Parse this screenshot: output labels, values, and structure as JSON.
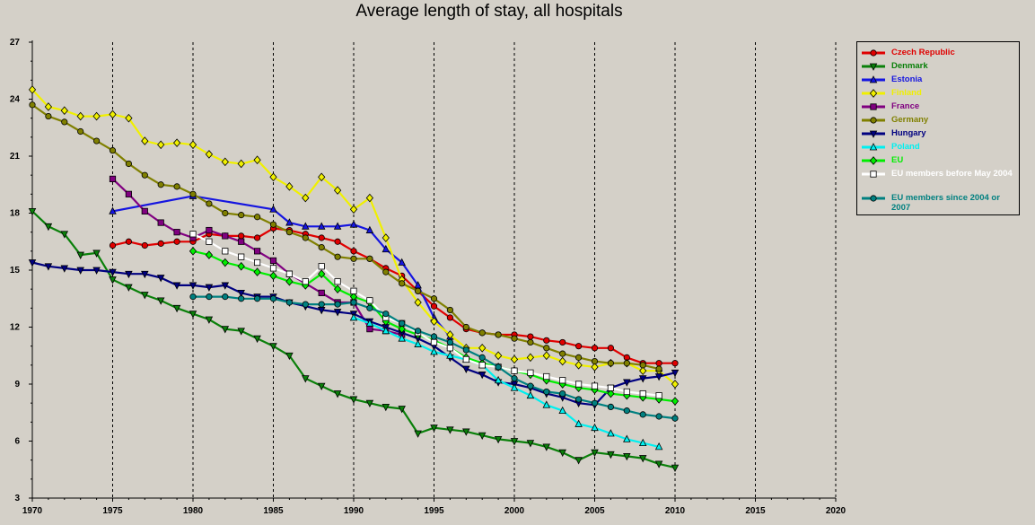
{
  "chart_data": {
    "type": "line",
    "title": "Average length of stay, all hospitals",
    "xlabel": "",
    "ylabel": "",
    "xlim": [
      1970,
      2020
    ],
    "ylim": [
      3,
      27
    ],
    "xticks": [
      1970,
      1975,
      1980,
      1985,
      1990,
      1995,
      2000,
      2005,
      2010,
      2015,
      2020
    ],
    "yticks": [
      3,
      6,
      9,
      12,
      15,
      18,
      21,
      24,
      27
    ],
    "grid": "vertical dashed",
    "legend_position": "right",
    "series": [
      {
        "name": "Czech Republic",
        "color": "#e00000",
        "marker": "circle",
        "x": [
          1975,
          1976,
          1977,
          1978,
          1979,
          1980,
          1981,
          1982,
          1983,
          1984,
          1985,
          1986,
          1987,
          1988,
          1989,
          1990,
          1991,
          1992,
          1993,
          1994,
          1995,
          1996,
          1997,
          1998,
          1999,
          2000,
          2001,
          2002,
          2003,
          2004,
          2005,
          2006,
          2007,
          2008,
          2009,
          2010
        ],
        "y": [
          16.3,
          16.5,
          16.3,
          16.4,
          16.5,
          16.5,
          16.9,
          16.8,
          16.8,
          16.7,
          17.2,
          17.1,
          16.9,
          16.7,
          16.5,
          16.0,
          15.6,
          15.1,
          14.7,
          13.9,
          13.1,
          12.5,
          11.9,
          11.7,
          11.6,
          11.6,
          11.5,
          11.3,
          11.2,
          11.0,
          10.9,
          10.9,
          10.4,
          10.1,
          10.1,
          10.1
        ]
      },
      {
        "name": "Denmark",
        "color": "#0a800a",
        "marker": "triangle-down",
        "x": [
          1970,
          1971,
          1972,
          1973,
          1974,
          1975,
          1976,
          1977,
          1978,
          1979,
          1980,
          1981,
          1982,
          1983,
          1984,
          1985,
          1986,
          1987,
          1988,
          1989,
          1990,
          1991,
          1992,
          1993,
          1994,
          1995,
          1996,
          1997,
          1998,
          1999,
          2000,
          2001,
          2002,
          2003,
          2004,
          2005,
          2006,
          2007,
          2008,
          2009,
          2010
        ],
        "y": [
          18.1,
          17.3,
          16.9,
          15.8,
          15.9,
          14.5,
          14.1,
          13.7,
          13.4,
          13.0,
          12.7,
          12.4,
          11.9,
          11.8,
          11.4,
          11.0,
          10.5,
          9.3,
          8.9,
          8.5,
          8.2,
          8.0,
          7.8,
          7.7,
          6.4,
          6.7,
          6.6,
          6.5,
          6.3,
          6.1,
          6.0,
          5.9,
          5.7,
          5.4,
          5.0,
          5.4,
          5.3,
          5.2,
          5.1,
          4.8,
          4.6
        ]
      },
      {
        "name": "Estonia",
        "color": "#1515e0",
        "marker": "triangle-up",
        "x": [
          1975,
          1980,
          1985,
          1986,
          1987,
          1988,
          1989,
          1990,
          1991,
          1992,
          1993,
          1994,
          1995,
          1996
        ],
        "y": [
          18.1,
          18.9,
          18.2,
          17.5,
          17.3,
          17.3,
          17.3,
          17.4,
          17.1,
          16.1,
          15.4,
          14.2,
          12.5,
          11.5
        ]
      },
      {
        "name": "Finland",
        "color": "#f0f000",
        "marker": "diamond",
        "x": [
          1970,
          1971,
          1972,
          1973,
          1974,
          1975,
          1976,
          1977,
          1978,
          1979,
          1980,
          1981,
          1982,
          1983,
          1984,
          1985,
          1986,
          1987,
          1988,
          1989,
          1990,
          1991,
          1992,
          1993,
          1994,
          1995,
          1996,
          1997,
          1998,
          1999,
          2000,
          2001,
          2002,
          2003,
          2004,
          2005,
          2006,
          2007,
          2008,
          2009,
          2010
        ],
        "y": [
          24.5,
          23.6,
          23.4,
          23.1,
          23.1,
          23.2,
          23.0,
          21.8,
          21.6,
          21.7,
          21.6,
          21.1,
          20.7,
          20.6,
          20.8,
          19.9,
          19.4,
          18.8,
          19.9,
          19.2,
          18.2,
          18.8,
          16.7,
          14.5,
          13.3,
          12.3,
          11.6,
          10.9,
          10.9,
          10.5,
          10.3,
          10.4,
          10.5,
          10.2,
          10.0,
          9.9,
          10.1,
          10.1,
          9.7,
          9.7,
          9.0
        ]
      },
      {
        "name": "France",
        "color": "#800080",
        "marker": "square",
        "x": [
          1975,
          1976,
          1977,
          1978,
          1979,
          1980,
          1981,
          1982,
          1983,
          1984,
          1985,
          1986,
          1987,
          1988,
          1989,
          1990,
          1991,
          1992,
          1993
        ],
        "y": [
          19.8,
          19.0,
          18.1,
          17.5,
          17.0,
          16.7,
          17.1,
          16.8,
          16.5,
          16.0,
          15.5,
          14.8,
          14.3,
          13.8,
          13.3,
          13.3,
          11.9,
          11.8,
          11.6
        ]
      },
      {
        "name": "Germany",
        "color": "#808000",
        "marker": "circle",
        "x": [
          1970,
          1971,
          1972,
          1973,
          1974,
          1975,
          1976,
          1977,
          1978,
          1979,
          1980,
          1981,
          1982,
          1983,
          1984,
          1985,
          1986,
          1987,
          1988,
          1989,
          1990,
          1991,
          1992,
          1993,
          1994,
          1995,
          1996,
          1997,
          1998,
          1999,
          2000,
          2001,
          2002,
          2003,
          2004,
          2005,
          2006,
          2007,
          2008,
          2009
        ],
        "y": [
          23.7,
          23.1,
          22.8,
          22.3,
          21.8,
          21.3,
          20.6,
          20.0,
          19.5,
          19.4,
          19.0,
          18.5,
          18.0,
          17.9,
          17.8,
          17.4,
          17.0,
          16.7,
          16.2,
          15.7,
          15.6,
          15.6,
          14.9,
          14.3,
          13.9,
          13.5,
          12.9,
          12.0,
          11.7,
          11.6,
          11.4,
          11.2,
          10.9,
          10.6,
          10.4,
          10.2,
          10.1,
          10.1,
          10.0,
          9.8
        ]
      },
      {
        "name": "Hungary",
        "color": "#000080",
        "marker": "triangle-down",
        "x": [
          1970,
          1971,
          1972,
          1973,
          1974,
          1975,
          1976,
          1977,
          1978,
          1979,
          1980,
          1981,
          1982,
          1983,
          1984,
          1985,
          1986,
          1987,
          1988,
          1989,
          1990,
          1991,
          1992,
          1993,
          1994,
          1995,
          1996,
          1997,
          1998,
          1999,
          2000,
          2001,
          2002,
          2003,
          2004,
          2005,
          2006,
          2007,
          2008,
          2009,
          2010
        ],
        "y": [
          15.4,
          15.2,
          15.1,
          15.0,
          15.0,
          14.9,
          14.8,
          14.8,
          14.6,
          14.2,
          14.2,
          14.1,
          14.2,
          13.8,
          13.6,
          13.6,
          13.3,
          13.1,
          12.9,
          12.8,
          12.7,
          12.3,
          12.0,
          11.7,
          11.4,
          11.0,
          10.4,
          9.8,
          9.5,
          9.1,
          9.0,
          8.8,
          8.5,
          8.3,
          8.0,
          7.9,
          8.8,
          9.1,
          9.3,
          9.4,
          9.6
        ]
      },
      {
        "name": "Poland",
        "color": "#00f0f0",
        "marker": "triangle-up",
        "x": [
          1990,
          1991,
          1992,
          1993,
          1994,
          1995,
          1996,
          1997,
          1998,
          1999,
          2000,
          2001,
          2002,
          2003,
          2004,
          2005,
          2006,
          2007,
          2008,
          2009
        ],
        "y": [
          12.5,
          12.2,
          11.8,
          11.4,
          11.1,
          10.7,
          10.5,
          10.3,
          10.0,
          9.2,
          8.8,
          8.4,
          7.9,
          7.6,
          6.9,
          6.7,
          6.4,
          6.1,
          5.9,
          5.7
        ]
      },
      {
        "name": "EU",
        "color": "#00ee00",
        "marker": "diamond",
        "x": [
          1980,
          1981,
          1982,
          1983,
          1984,
          1985,
          1986,
          1987,
          1988,
          1989,
          1990,
          1991,
          1992,
          1993,
          1994,
          1995,
          1996,
          1997,
          1998,
          1999,
          2000,
          2001,
          2002,
          2003,
          2004,
          2005,
          2006,
          2007,
          2008,
          2009,
          2010
        ],
        "y": [
          16.0,
          15.8,
          15.4,
          15.2,
          14.9,
          14.7,
          14.4,
          14.2,
          14.8,
          14.0,
          13.6,
          13.3,
          12.3,
          11.9,
          11.6,
          11.3,
          10.9,
          10.4,
          10.1,
          9.9,
          9.7,
          9.5,
          9.2,
          9.0,
          8.8,
          8.7,
          8.5,
          8.4,
          8.3,
          8.2,
          8.1
        ]
      },
      {
        "name": "EU members before May 2004",
        "color": "#ffffff",
        "marker": "square",
        "x": [
          1980,
          1981,
          1982,
          1983,
          1984,
          1985,
          1986,
          1987,
          1988,
          1989,
          1990,
          1991,
          1992,
          1993,
          1994,
          1995,
          1996,
          1997,
          1998,
          1999,
          2000,
          2001,
          2002,
          2003,
          2004,
          2005,
          2006,
          2007,
          2008,
          2009
        ],
        "y": [
          16.9,
          16.5,
          16.0,
          15.7,
          15.4,
          15.1,
          14.8,
          14.4,
          15.2,
          14.4,
          13.9,
          13.4,
          12.5,
          12.2,
          11.7,
          11.2,
          10.9,
          10.3,
          10.0,
          9.9,
          9.7,
          9.6,
          9.4,
          9.2,
          9.0,
          8.9,
          8.8,
          8.6,
          8.5,
          8.4
        ]
      },
      {
        "name": "EU members since 2004 or 2007",
        "color": "#008080",
        "marker": "circle",
        "x": [
          1980,
          1981,
          1982,
          1983,
          1984,
          1985,
          1986,
          1987,
          1988,
          1989,
          1990,
          1991,
          1992,
          1993,
          1994,
          1995,
          1996,
          1997,
          1998,
          1999,
          2000,
          2001,
          2002,
          2003,
          2004,
          2005,
          2006,
          2007,
          2008,
          2009,
          2010
        ],
        "y": [
          13.6,
          13.6,
          13.6,
          13.5,
          13.5,
          13.5,
          13.3,
          13.2,
          13.2,
          13.2,
          13.3,
          13.0,
          12.7,
          12.2,
          11.8,
          11.5,
          11.2,
          10.8,
          10.4,
          9.9,
          9.3,
          8.9,
          8.6,
          8.5,
          8.2,
          8.0,
          7.8,
          7.6,
          7.4,
          7.3,
          7.2
        ]
      }
    ]
  }
}
